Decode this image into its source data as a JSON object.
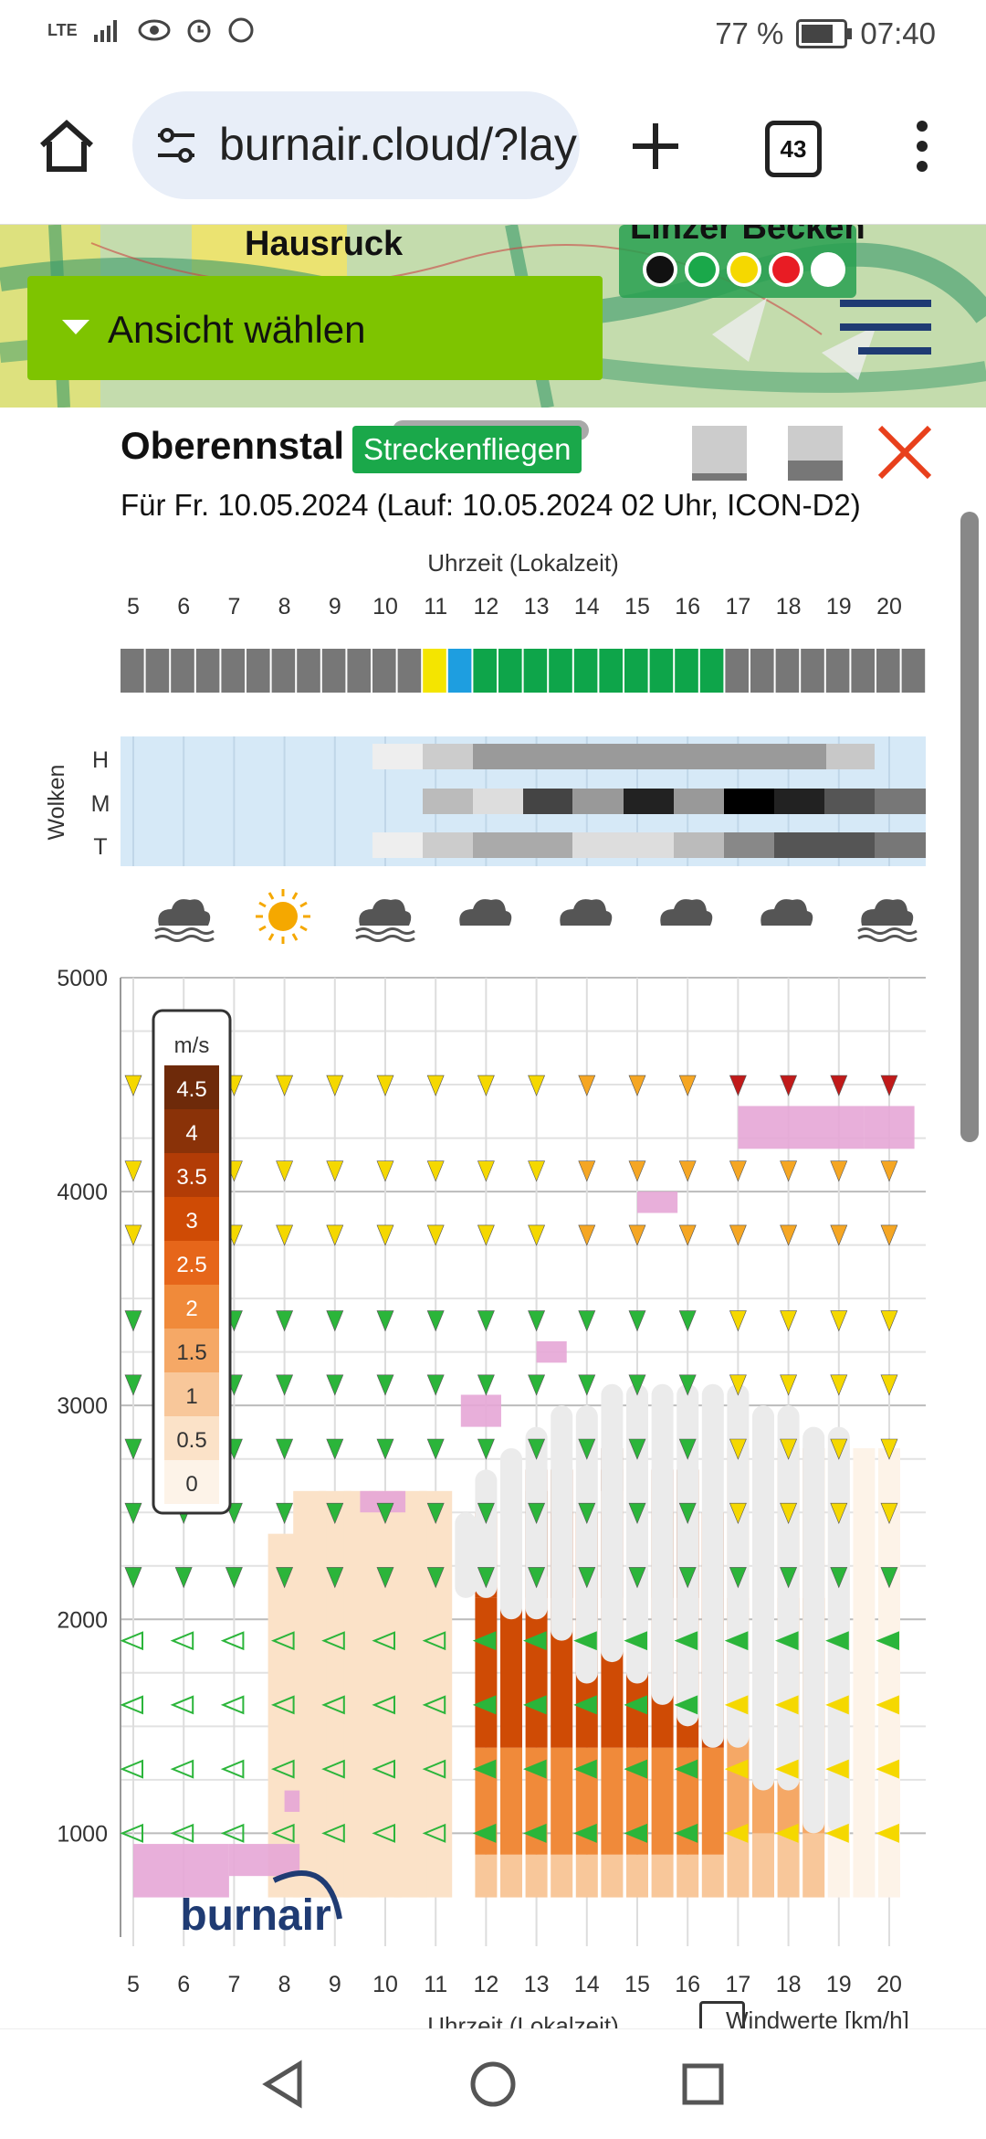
{
  "status": {
    "network": "LTE",
    "battery": "77 %",
    "time": "07:40"
  },
  "browser": {
    "url": "burnair.cloud/?lay",
    "tabs_count": "43"
  },
  "map": {
    "label_left": "Hausruck",
    "label_right": "Linzer Becken",
    "view_button": "Ansicht wählen"
  },
  "panel": {
    "title": "Oberennstal",
    "badge": "Streckenfliegen",
    "subtitle": "Für Fr. 10.05.2024 (Lauf: 10.05.2024 02 Uhr, ICON-D2)"
  },
  "chart_data": [
    {
      "type": "heatmap",
      "title": "Uhrzeit (Lokalzeit)",
      "x": [
        5,
        6,
        7,
        8,
        9,
        10,
        11,
        12,
        13,
        14,
        15,
        16,
        17,
        18,
        19,
        20
      ],
      "flight_status_colors": [
        "#777",
        "#777",
        "#777",
        "#777",
        "#777",
        "#777",
        "#777",
        "#777",
        "#777",
        "#777",
        "#777",
        "#777",
        "#777",
        "#777",
        "#777",
        "#777",
        "#777",
        "#777",
        "#777",
        "#777",
        "#777",
        "#777",
        "#777",
        "#777",
        "#777",
        "#777",
        "#777",
        "#777",
        "#777",
        "#777",
        "#777",
        "#777",
        "#777",
        "#777",
        "#777",
        "#777",
        "#777",
        "#777",
        "#777",
        "#777",
        "#777",
        "#777",
        "#777",
        "#777",
        "#777",
        "#777",
        "#777",
        "#777",
        "#777",
        "#777",
        "#777",
        "#777",
        "#777",
        "#777",
        "#777",
        "#777",
        "#777",
        "#777",
        "#777",
        "#777",
        "#777",
        "#777",
        "#777",
        "#777"
      ]
    },
    {
      "type": "heatmap",
      "ylabel": "Wolken",
      "levels": [
        "H",
        "M",
        "T"
      ],
      "x": [
        5,
        6,
        7,
        8,
        9,
        10,
        11,
        12,
        13,
        14,
        15,
        16,
        17,
        18,
        19,
        20
      ]
    },
    {
      "type": "heatmap",
      "title": "",
      "xlabel": "Uhrzeit (Lokalzeit)",
      "x": [
        5,
        6,
        7,
        8,
        9,
        10,
        11,
        12,
        13,
        14,
        15,
        16,
        17,
        18,
        19,
        20
      ],
      "y_ticks": [
        1000,
        2000,
        3000,
        4000,
        5000
      ],
      "ylim": [
        600,
        5000
      ],
      "legend_unit": "m/s",
      "legend_values": [
        "4.5",
        "4",
        "3.5",
        "3",
        "2.5",
        "2",
        "1.5",
        "1",
        "0.5",
        "0"
      ],
      "legend_colors": [
        "#6e2a0a",
        "#8a3208",
        "#b23c06",
        "#cf4b05",
        "#e6661a",
        "#f08a3a",
        "#f5a866",
        "#f8c79a",
        "#fbe2c8",
        "#fdf3e8"
      ],
      "footer_label": "Windwerte [km/h]"
    }
  ],
  "weather_icons": [
    "fog-cloud-icon",
    "sun-icon",
    "fog-cloud-icon",
    "cloud-icon",
    "cloud-icon",
    "cloud-icon",
    "cloud-icon",
    "fog-cloud-icon"
  ],
  "watermark": "burnair",
  "colors": {
    "accent_green": "#7ec400",
    "badge_green": "#1aa84a",
    "close_red": "#e8401c"
  }
}
